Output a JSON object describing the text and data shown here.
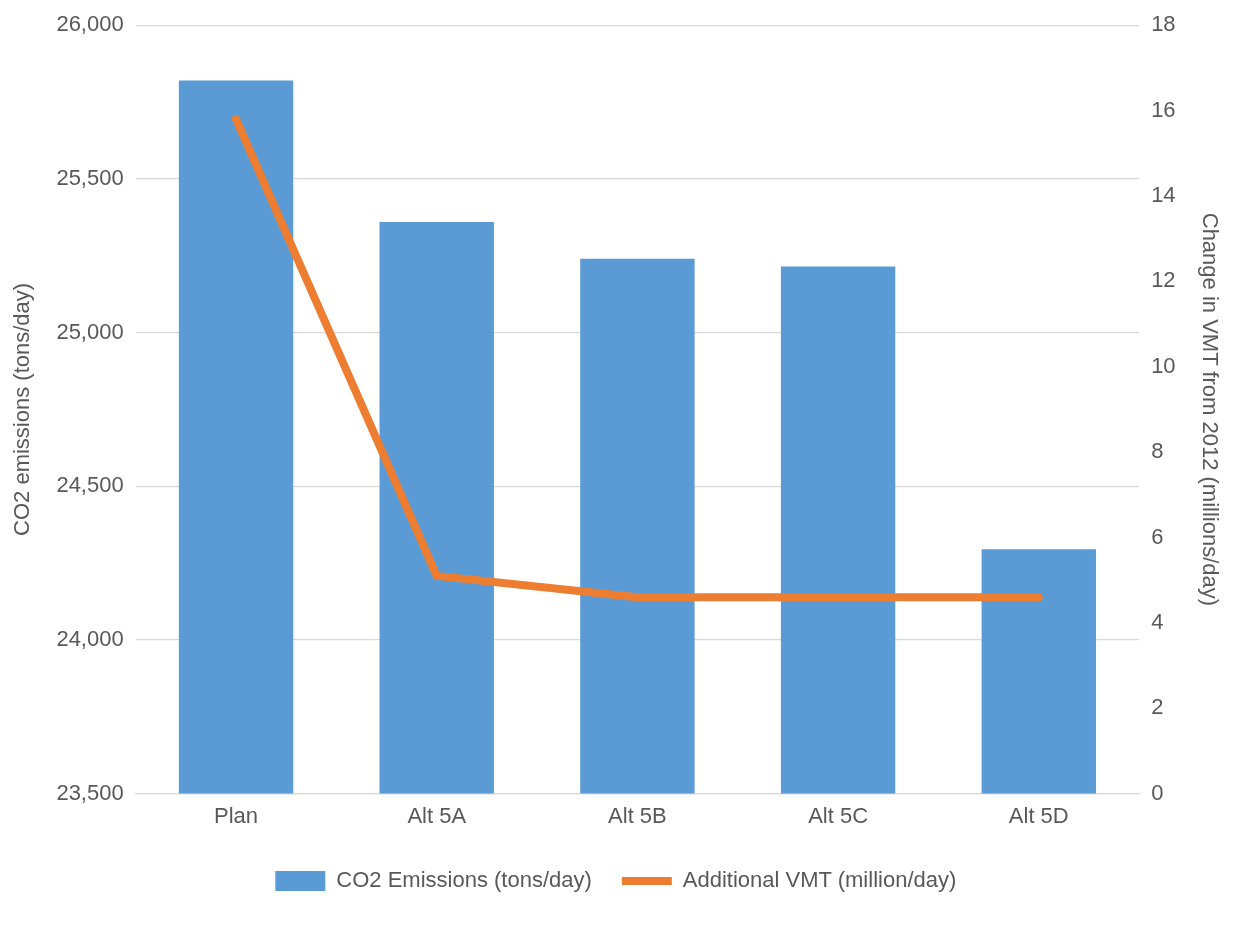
{
  "chart_data": {
    "type": "bar",
    "categories": [
      "Plan",
      "Alt 5A",
      "Alt 5B",
      "Alt 5C",
      "Alt 5D"
    ],
    "series": [
      {
        "name": "CO2 Emissions (tons/day)",
        "color": "#5b9bd5",
        "values": [
          25820,
          25360,
          25240,
          25215,
          24295
        ]
      },
      {
        "name": "Additional VMT (million/day)",
        "type": "line",
        "axis": "y2",
        "color": "#ed7d31",
        "values": [
          15.8,
          5.1,
          4.6,
          4.6,
          4.6
        ]
      }
    ],
    "ylabel": "CO2 emissions (tons/day)",
    "y2label": "Change in VMT from 2012 (millions/day)",
    "ylim": [
      23500,
      26000
    ],
    "yticks": [
      {
        "value": 23500,
        "label": "23,500"
      },
      {
        "value": 24000,
        "label": "24,000"
      },
      {
        "value": 24500,
        "label": "24,500"
      },
      {
        "value": 25000,
        "label": "25,000"
      },
      {
        "value": 25500,
        "label": "25,500"
      },
      {
        "value": 26000,
        "label": "26,000"
      }
    ],
    "y2lim": [
      0,
      18
    ],
    "y2ticks": [
      0,
      2,
      4,
      6,
      8,
      10,
      12,
      14,
      16,
      18
    ],
    "grid": "y",
    "legend": "bottom",
    "marker": "none",
    "line_style": "solid"
  }
}
